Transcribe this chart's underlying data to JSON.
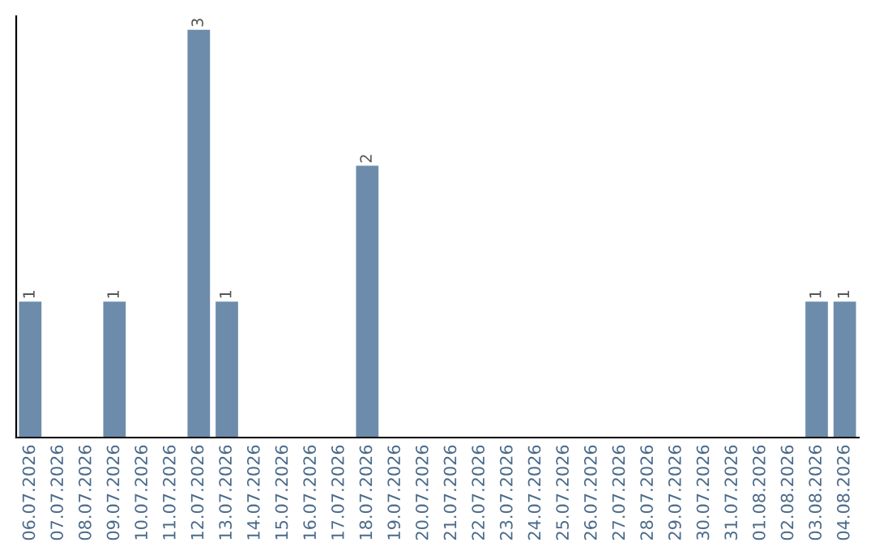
{
  "chart_data": {
    "type": "bar",
    "categories": [
      "06.07.2026",
      "07.07.2026",
      "08.07.2026",
      "09.07.2026",
      "10.07.2026",
      "11.07.2026",
      "12.07.2026",
      "13.07.2026",
      "14.07.2026",
      "15.07.2026",
      "16.07.2026",
      "17.07.2026",
      "18.07.2026",
      "19.07.2026",
      "20.07.2026",
      "21.07.2026",
      "22.07.2026",
      "23.07.2026",
      "24.07.2026",
      "25.07.2026",
      "26.07.2026",
      "27.07.2026",
      "28.07.2026",
      "29.07.2026",
      "30.07.2026",
      "31.07.2026",
      "01.08.2026",
      "02.08.2026",
      "03.08.2026",
      "04.08.2026"
    ],
    "values": [
      1,
      0,
      0,
      1,
      0,
      0,
      3,
      1,
      0,
      0,
      0,
      0,
      2,
      0,
      0,
      0,
      0,
      0,
      0,
      0,
      0,
      0,
      0,
      0,
      0,
      0,
      0,
      0,
      1,
      1
    ],
    "value_labels": [
      "1",
      null,
      null,
      "1",
      null,
      null,
      "3",
      "1",
      null,
      null,
      null,
      null,
      "2",
      null,
      null,
      null,
      null,
      null,
      null,
      null,
      null,
      null,
      null,
      null,
      null,
      null,
      null,
      null,
      "1",
      "1"
    ],
    "color": "#6d8cac",
    "ylim": [
      0,
      3.1
    ],
    "tick_labels": "x",
    "grid": false,
    "legend": false
  }
}
